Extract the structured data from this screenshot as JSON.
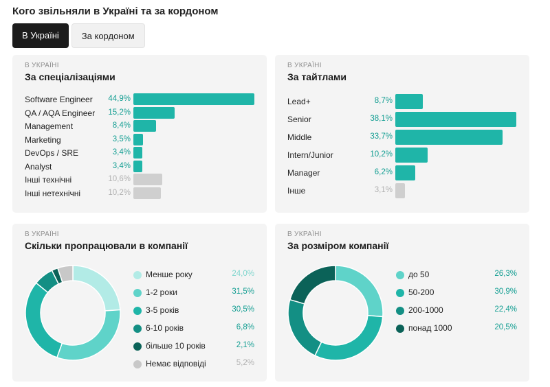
{
  "page": {
    "title": "Кого звільняли в Україні та за кордоном"
  },
  "tabs": [
    {
      "label": "В Україні",
      "active": true
    },
    {
      "label": "За кордоном",
      "active": false
    }
  ],
  "colors": {
    "teal": "#1fb5a8",
    "gray": "#cfcfcf",
    "value_teal": "#139e92",
    "value_gray": "#b0b0b0"
  },
  "chart_data": [
    {
      "id": "specializations",
      "type": "bar",
      "kicker": "В Україні",
      "title": "За спеціалізаціями",
      "categories": [
        "Software Engineer",
        "QA / AQA Engineer",
        "Management",
        "Marketing",
        "DevOps / SRE",
        "Analyst",
        "Інші технічні",
        "Інші нетехнічні"
      ],
      "values": [
        44.9,
        15.2,
        8.4,
        3.5,
        3.4,
        3.4,
        10.6,
        10.2
      ],
      "value_labels": [
        "44,9%",
        "15,2%",
        "8,4%",
        "3,5%",
        "3,4%",
        "3,4%",
        "10,6%",
        "10,2%"
      ],
      "bar_colors": [
        "#1fb5a8",
        "#1fb5a8",
        "#1fb5a8",
        "#1fb5a8",
        "#1fb5a8",
        "#1fb5a8",
        "#cfcfcf",
        "#cfcfcf"
      ],
      "max": 44.9
    },
    {
      "id": "titles",
      "type": "bar",
      "kicker": "В Україні",
      "title": "За тайтлами",
      "categories": [
        "Lead+",
        "Senior",
        "Middle",
        "Intern/Junior",
        "Manager",
        "Інше"
      ],
      "values": [
        8.7,
        38.1,
        33.7,
        10.2,
        6.2,
        3.1
      ],
      "value_labels": [
        "8,7%",
        "38,1%",
        "33,7%",
        "10,2%",
        "6,2%",
        "3,1%"
      ],
      "bar_colors": [
        "#1fb5a8",
        "#1fb5a8",
        "#1fb5a8",
        "#1fb5a8",
        "#1fb5a8",
        "#cfcfcf"
      ],
      "max": 38.1
    },
    {
      "id": "tenure",
      "type": "pie",
      "kicker": "В Україні",
      "title": "Скільки пропрацювали в компанії",
      "categories": [
        "Менше року",
        "1-2 роки",
        "3-5 років",
        "6-10 років",
        "більше 10 років",
        "Немає відповіді"
      ],
      "values": [
        24.0,
        31.5,
        30.5,
        6.8,
        2.1,
        5.2
      ],
      "value_labels": [
        "24,0%",
        "31,5%",
        "30,5%",
        "6,8%",
        "2,1%",
        "5,2%"
      ],
      "colors": [
        "#b2ebe6",
        "#5fd3c9",
        "#1fb5a8",
        "#138f84",
        "#0b6258",
        "#c8c8c8"
      ]
    },
    {
      "id": "company_size",
      "type": "pie",
      "kicker": "В Україні",
      "title": "За розміром компанії",
      "categories": [
        "до 50",
        "50-200",
        "200-1000",
        "понад 1000"
      ],
      "values": [
        26.3,
        30.9,
        22.4,
        20.5
      ],
      "value_labels": [
        "26,3%",
        "30,9%",
        "22,4%",
        "20,5%"
      ],
      "colors": [
        "#5fd3c9",
        "#1fb5a8",
        "#138f84",
        "#0b6258"
      ]
    }
  ]
}
